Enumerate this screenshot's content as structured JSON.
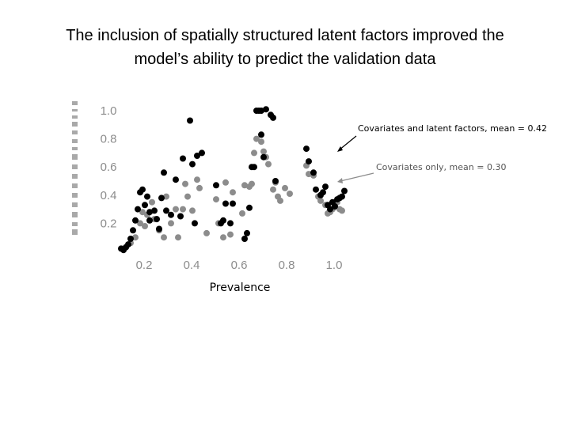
{
  "title_line1": "The inclusion of spatially structured latent factors improved the",
  "title_line2": "model’s ability to predict the validation data",
  "chart_data": {
    "type": "scatter",
    "xlabel": "Prevalence",
    "ylabel": "",
    "xlim": [
      0.0,
      1.0
    ],
    "ylim": [
      0.0,
      1.0
    ],
    "x_ticks": [
      "0.2",
      "0.4",
      "0.6",
      "0.8",
      "1.0"
    ],
    "y_ticks": [
      "0.2",
      "0.4",
      "0.6",
      "0.8",
      "1.0"
    ],
    "grid": false,
    "annotations": [
      {
        "text": "Covariates and latent factors, mean = 0.42",
        "color": "#000000"
      },
      {
        "text": "Covariates only, mean = 0.30",
        "color": "#555555"
      }
    ],
    "series": [
      {
        "color": "#000000",
        "x": [
          0.01,
          0.02,
          0.03,
          0.04,
          0.05,
          0.06,
          0.07,
          0.08,
          0.09,
          0.1,
          0.11,
          0.12,
          0.13,
          0.13,
          0.15,
          0.16,
          0.17,
          0.18,
          0.19,
          0.2,
          0.22,
          0.24,
          0.26,
          0.27,
          0.3,
          0.31,
          0.32,
          0.33,
          0.35,
          0.41,
          0.43,
          0.44,
          0.45,
          0.47,
          0.48,
          0.53,
          0.54,
          0.55,
          0.56,
          0.57,
          0.58,
          0.59,
          0.6,
          0.6,
          0.61,
          0.62,
          0.64,
          0.65,
          0.66,
          0.79,
          0.8,
          0.82,
          0.83,
          0.85,
          0.86,
          0.87,
          0.88,
          0.89,
          0.9,
          0.91,
          0.92,
          0.93,
          0.94,
          0.95
        ],
        "y": [
          0.02,
          0.01,
          0.03,
          0.05,
          0.09,
          0.15,
          0.22,
          0.3,
          0.42,
          0.44,
          0.33,
          0.39,
          0.22,
          0.28,
          0.29,
          0.23,
          0.16,
          0.38,
          0.56,
          0.29,
          0.26,
          0.51,
          0.25,
          0.66,
          0.93,
          0.62,
          0.2,
          0.68,
          0.7,
          0.47,
          0.2,
          0.22,
          0.34,
          0.2,
          0.34,
          0.09,
          0.13,
          0.31,
          0.6,
          0.6,
          1.0,
          1.0,
          1.0,
          0.83,
          0.67,
          1.01,
          0.97,
          0.95,
          0.5,
          0.73,
          0.64,
          0.56,
          0.44,
          0.4,
          0.42,
          0.46,
          0.33,
          0.3,
          0.35,
          0.32,
          0.37,
          0.38,
          0.39,
          0.43
        ]
      },
      {
        "color": "#8c8c8c",
        "x": [
          0.03,
          0.05,
          0.07,
          0.09,
          0.1,
          0.11,
          0.12,
          0.14,
          0.15,
          0.16,
          0.17,
          0.19,
          0.2,
          0.22,
          0.24,
          0.25,
          0.27,
          0.28,
          0.29,
          0.31,
          0.33,
          0.34,
          0.37,
          0.41,
          0.42,
          0.44,
          0.45,
          0.47,
          0.48,
          0.52,
          0.53,
          0.55,
          0.56,
          0.57,
          0.58,
          0.6,
          0.61,
          0.62,
          0.63,
          0.65,
          0.66,
          0.67,
          0.68,
          0.7,
          0.72,
          0.79,
          0.8,
          0.82,
          0.84,
          0.85,
          0.87,
          0.88,
          0.89,
          0.9,
          0.91,
          0.92,
          0.93,
          0.94
        ],
        "y": [
          0.03,
          0.06,
          0.1,
          0.2,
          0.28,
          0.18,
          0.26,
          0.35,
          0.23,
          0.23,
          0.15,
          0.1,
          0.39,
          0.2,
          0.3,
          0.1,
          0.3,
          0.48,
          0.39,
          0.29,
          0.51,
          0.45,
          0.13,
          0.37,
          0.2,
          0.1,
          0.49,
          0.12,
          0.42,
          0.27,
          0.47,
          0.46,
          0.48,
          0.7,
          0.8,
          0.78,
          0.71,
          0.67,
          0.62,
          0.44,
          0.49,
          0.39,
          0.36,
          0.45,
          0.41,
          0.61,
          0.55,
          0.54,
          0.39,
          0.36,
          0.33,
          0.27,
          0.28,
          0.3,
          0.34,
          0.35,
          0.3,
          0.29
        ]
      }
    ]
  }
}
